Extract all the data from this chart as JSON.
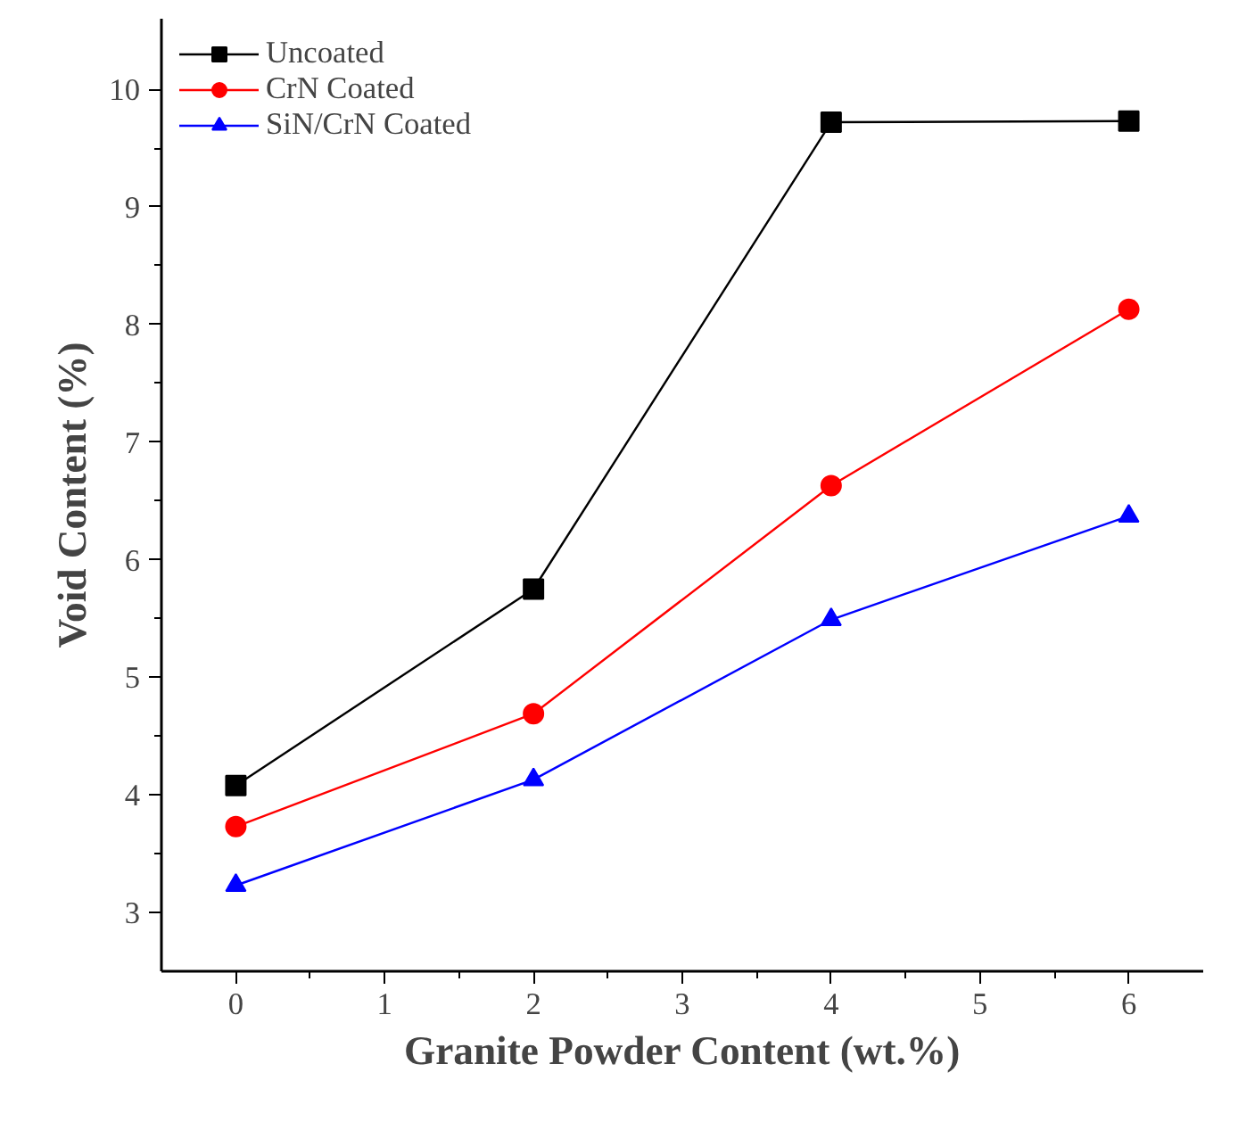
{
  "chart_data": {
    "type": "line",
    "xlabel": "Granite Powder Content (wt.%)",
    "ylabel": "Void Content (%)",
    "x": [
      0,
      2,
      4,
      6
    ],
    "series": [
      {
        "name": "Uncoated",
        "color": "#000000",
        "marker": "square",
        "values": [
          4.08,
          5.75,
          9.72,
          9.73
        ]
      },
      {
        "name": "CrN Coated",
        "color": "#ff0000",
        "marker": "circle",
        "values": [
          3.73,
          4.69,
          6.63,
          8.13
        ]
      },
      {
        "name": "SiN/CrN Coated",
        "color": "#0000ff",
        "marker": "triangle",
        "values": [
          3.23,
          4.13,
          5.49,
          6.37
        ]
      }
    ],
    "xlim": [
      -0.5,
      6.5
    ],
    "xticks": [
      0,
      1,
      2,
      3,
      4,
      5,
      6
    ],
    "ylim": [
      2.5,
      10.6
    ],
    "yticks": [
      3,
      4,
      5,
      6,
      7,
      8,
      9,
      10
    ],
    "grid": false,
    "legend": "top left"
  }
}
